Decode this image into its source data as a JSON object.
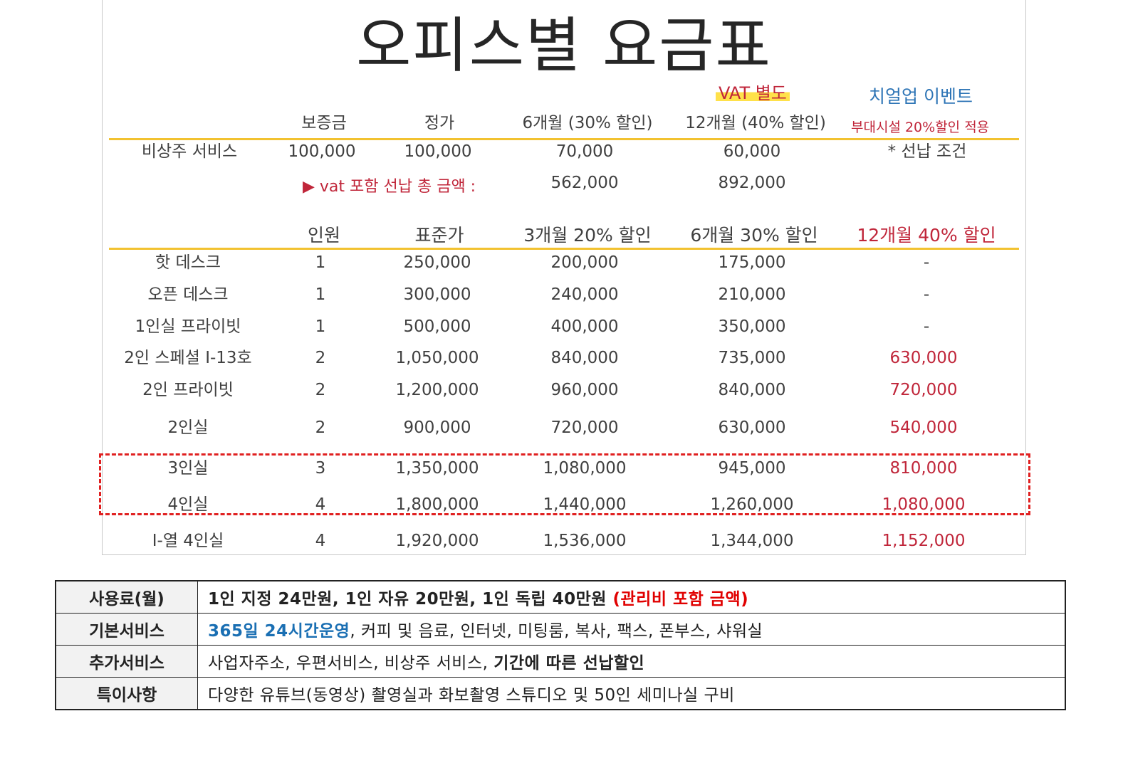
{
  "title": "오피스별 요금표",
  "vat_note": "VAT 별도",
  "event": {
    "title": "치얼업 이벤트",
    "subtitle": "부대시설 20%할인 적용"
  },
  "service_table": {
    "headers": [
      "보증금",
      "정가",
      "6개월 (30% 할인)",
      "12개월 (40% 할인)"
    ],
    "row": {
      "name": "비상주 서비스",
      "deposit": "100,000",
      "list": "100,000",
      "m6": "70,000",
      "m12": "60,000",
      "note": "* 선납 조건"
    },
    "prepay_label": "▶ vat 포함 선납 총 금액 :",
    "prepay_m6": "562,000",
    "prepay_m12": "892,000"
  },
  "office_table": {
    "headers": [
      "인원",
      "표준가",
      "3개월 20% 할인",
      "6개월 30% 할인",
      "12개월 40% 할인"
    ],
    "rows": [
      {
        "name": "핫 데스크",
        "people": "1",
        "std": "250,000",
        "m3": "200,000",
        "m6": "175,000",
        "m12": "-"
      },
      {
        "name": "오픈 데스크",
        "people": "1",
        "std": "300,000",
        "m3": "240,000",
        "m6": "210,000",
        "m12": "-"
      },
      {
        "name": "1인실 프라이빗",
        "people": "1",
        "std": "500,000",
        "m3": "400,000",
        "m6": "350,000",
        "m12": "-"
      },
      {
        "name": "2인 스페셜 I-13호",
        "people": "2",
        "std": "1,050,000",
        "m3": "840,000",
        "m6": "735,000",
        "m12": "630,000"
      },
      {
        "name": "2인 프라이빗",
        "people": "2",
        "std": "1,200,000",
        "m3": "960,000",
        "m6": "840,000",
        "m12": "720,000"
      },
      {
        "name": "2인실",
        "people": "2",
        "std": "900,000",
        "m3": "720,000",
        "m6": "630,000",
        "m12": "540,000"
      },
      {
        "name": "3인실",
        "people": "3",
        "std": "1,350,000",
        "m3": "1,080,000",
        "m6": "945,000",
        "m12": "810,000"
      },
      {
        "name": "4인실",
        "people": "4",
        "std": "1,800,000",
        "m3": "1,440,000",
        "m6": "1,260,000",
        "m12": "1,080,000"
      },
      {
        "name": "I-열  4인실",
        "people": "4",
        "std": "1,920,000",
        "m3": "1,536,000",
        "m6": "1,344,000",
        "m12": "1,152,000"
      }
    ]
  },
  "info_table": {
    "fee": {
      "label": "사용료(월)",
      "main": "1인 지정 24만원, 1인 자유 20만원, 1인 독립 40만원 ",
      "highlight": "(관리비 포함 금액)"
    },
    "basic": {
      "label": "기본서비스",
      "highlight": "365일 24시간운영",
      "rest": ", 커피 및 음료, 인터넷, 미팅룸, 복사, 팩스, 폰부스, 샤워실"
    },
    "extra": {
      "label": "추가서비스",
      "rest": "사업자주소, 우편서비스, 비상주 서비스, ",
      "bold": "기간에 따른 선납할인"
    },
    "special": {
      "label": "특이사항",
      "text": "다양한 유튜브(동영상) 촬영실과 화보촬영 스튜디오 및 50인 세미나실 구비"
    }
  },
  "colors": {
    "accent_line": "#f2c230",
    "highlight_red": "#c0263a",
    "event_blue": "#2e75b6",
    "dashed_box": "#e02020"
  }
}
